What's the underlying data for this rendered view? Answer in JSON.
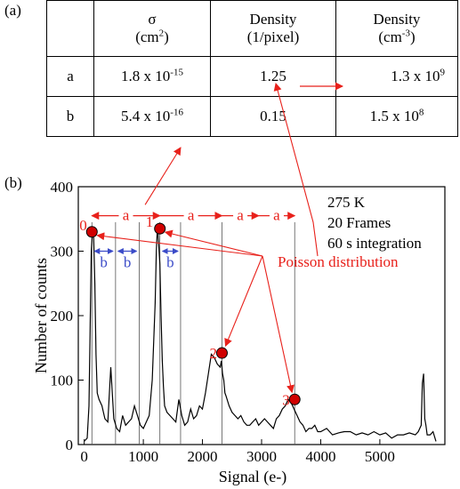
{
  "panel_a_label": "(a)",
  "panel_b_label": "(b)",
  "table": {
    "header": [
      {
        "top": "σ",
        "unit": "(cm",
        "unit_sup": "2",
        "unit_end": ")"
      },
      {
        "top": "Density",
        "unit": "(1/pixel)",
        "unit_sup": "",
        "unit_end": ""
      },
      {
        "top": "Density",
        "unit": "(cm",
        "unit_sup": "-3",
        "unit_end": ")"
      }
    ],
    "rows": [
      {
        "label": "a",
        "sigma_base": "1.8 x 10",
        "sigma_exp": "-15",
        "density_pixel": "1.25",
        "density_cm_base": "1.3 x 10",
        "density_cm_exp": "9"
      },
      {
        "label": "b",
        "sigma_base": "5.4 x 10",
        "sigma_exp": "-16",
        "density_pixel": "0.15",
        "density_cm_base": "1.5 x 10",
        "density_cm_exp": "8"
      }
    ]
  },
  "chart_data": {
    "type": "line",
    "xlabel": "Signal (e-)",
    "ylabel": "Number of counts",
    "xlim": [
      -100,
      6100
    ],
    "ylim": [
      0,
      400
    ],
    "xticks": [
      0,
      1000,
      2000,
      3000,
      4000,
      5000
    ],
    "yticks": [
      0,
      100,
      200,
      300,
      400
    ],
    "x": [
      0,
      50,
      80,
      100,
      120,
      140,
      160,
      180,
      200,
      220,
      250,
      300,
      350,
      400,
      450,
      500,
      550,
      600,
      650,
      700,
      750,
      800,
      850,
      900,
      950,
      1000,
      1050,
      1100,
      1150,
      1200,
      1220,
      1240,
      1260,
      1280,
      1300,
      1320,
      1340,
      1360,
      1400,
      1450,
      1500,
      1550,
      1600,
      1650,
      1700,
      1750,
      1800,
      1850,
      1900,
      1950,
      2000,
      2050,
      2100,
      2150,
      2200,
      2250,
      2300,
      2320,
      2340,
      2360,
      2380,
      2400,
      2450,
      2500,
      2550,
      2600,
      2650,
      2700,
      2750,
      2800,
      2850,
      2900,
      2950,
      3000,
      3050,
      3100,
      3150,
      3200,
      3250,
      3300,
      3350,
      3400,
      3450,
      3500,
      3550,
      3600,
      3650,
      3700,
      3750,
      3800,
      3850,
      3900,
      3950,
      4000,
      4100,
      4200,
      4300,
      4400,
      4500,
      4600,
      4700,
      4800,
      4900,
      5000,
      5100,
      5200,
      5300,
      5400,
      5500,
      5600,
      5650,
      5700,
      5720,
      5740,
      5760,
      5780,
      5800,
      5850,
      5900,
      5950
    ],
    "y": [
      5,
      10,
      60,
      180,
      300,
      330,
      320,
      250,
      140,
      80,
      70,
      60,
      40,
      35,
      120,
      40,
      25,
      20,
      45,
      30,
      35,
      40,
      60,
      45,
      30,
      25,
      35,
      45,
      100,
      220,
      300,
      340,
      310,
      280,
      200,
      130,
      90,
      60,
      50,
      45,
      40,
      35,
      70,
      45,
      30,
      35,
      55,
      40,
      45,
      60,
      55,
      80,
      110,
      140,
      135,
      125,
      120,
      130,
      110,
      100,
      80,
      75,
      60,
      50,
      45,
      40,
      45,
      35,
      30,
      30,
      35,
      40,
      30,
      35,
      40,
      35,
      30,
      25,
      40,
      45,
      55,
      60,
      70,
      65,
      55,
      45,
      35,
      30,
      20,
      25,
      25,
      30,
      20,
      20,
      25,
      15,
      18,
      20,
      20,
      15,
      18,
      15,
      20,
      15,
      18,
      10,
      15,
      15,
      18,
      15,
      20,
      30,
      95,
      110,
      40,
      30,
      15,
      15,
      20,
      5
    ],
    "peak_markers": [
      {
        "label": "0",
        "x": 130,
        "y": 330
      },
      {
        "label": "1",
        "x": 1280,
        "y": 335
      },
      {
        "label": "2",
        "x": 2330,
        "y": 142
      },
      {
        "label": "3",
        "x": 3560,
        "y": 70
      }
    ],
    "peak_lines_x": [
      130,
      530,
      930,
      1280,
      1630,
      2330,
      3560
    ],
    "spacing_labels": {
      "a": "a",
      "b": "b"
    },
    "annotations": [
      "275 K",
      "20 Frames",
      "60 s integration"
    ],
    "poisson_label": "Poisson distribution",
    "colors": {
      "data": "#000000",
      "annotation": "#e8211b",
      "spacing_b": "#3b4bc8",
      "marker": "#d00000"
    }
  }
}
